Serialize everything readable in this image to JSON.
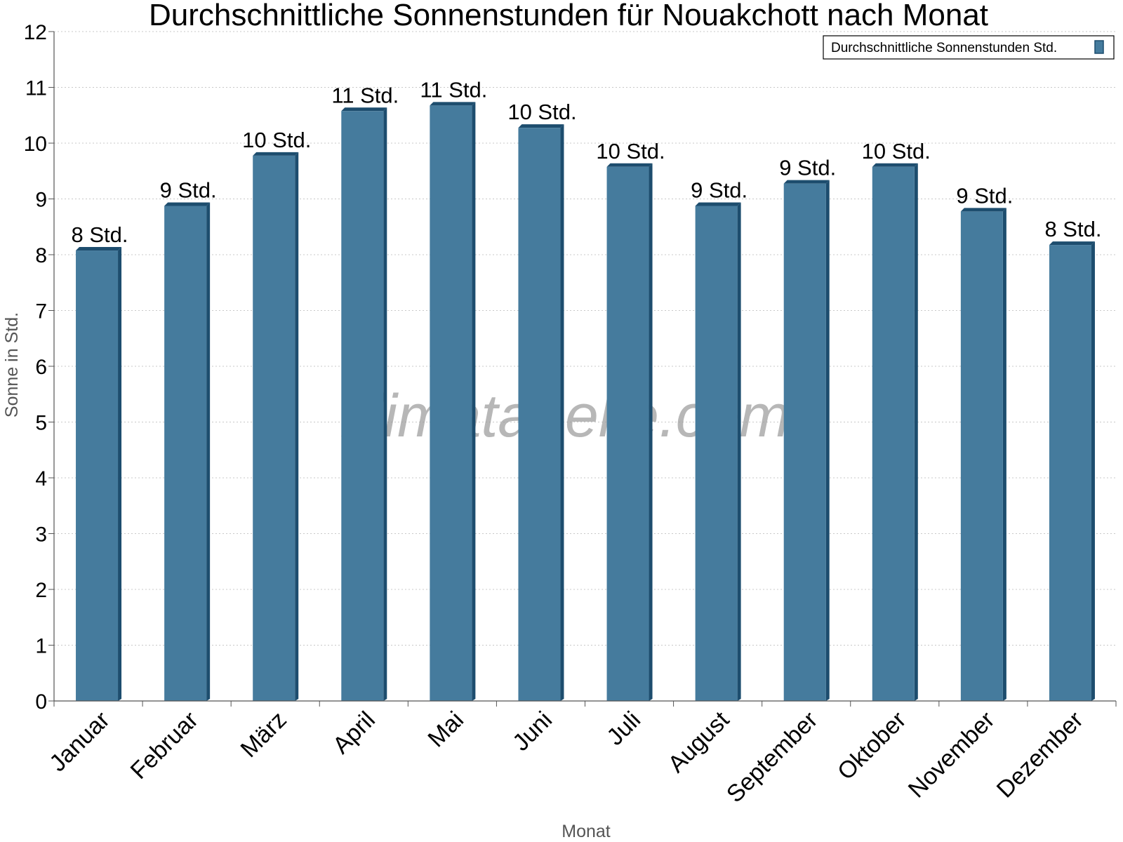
{
  "chart_data": {
    "type": "bar",
    "title": "Durchschnittliche Sonnenstunden für Nouakchott nach Monat",
    "xlabel": "Monat",
    "ylabel": "Sonne in Std.",
    "ylim": [
      0,
      12
    ],
    "yticks": [
      0,
      1,
      2,
      3,
      4,
      5,
      6,
      7,
      8,
      9,
      10,
      11,
      12
    ],
    "grid": true,
    "legend_position": "top-right",
    "watermark": "klimatabelle.com",
    "bar_color": "#457b9d",
    "bar_side_color": "#1d4d6e",
    "categories": [
      "Januar",
      "Februar",
      "März",
      "April",
      "Mai",
      "Juni",
      "Juli",
      "August",
      "September",
      "Oktober",
      "November",
      "Dezember"
    ],
    "series": [
      {
        "name": "Durchschnittliche Sonnenstunden Std.",
        "values": [
          8.1,
          8.9,
          9.8,
          10.6,
          10.7,
          10.3,
          9.6,
          8.9,
          9.3,
          9.6,
          8.8,
          8.2
        ],
        "labels": [
          "8 Std.",
          "9 Std.",
          "10 Std.",
          "11 Std.",
          "11 Std.",
          "10 Std.",
          "10 Std.",
          "9 Std.",
          "9 Std.",
          "10 Std.",
          "9 Std.",
          "8 Std."
        ]
      }
    ]
  }
}
